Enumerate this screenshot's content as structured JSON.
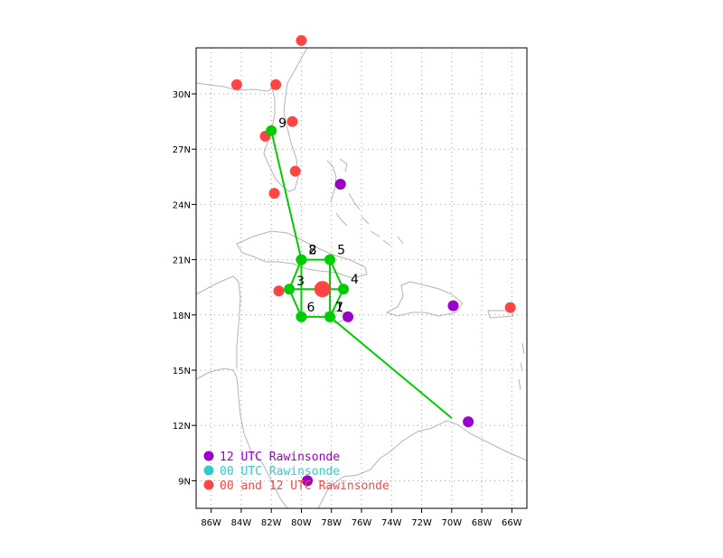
{
  "map": {
    "lon_range": [
      -87,
      -65
    ],
    "lat_range": [
      7.5,
      32.5
    ],
    "lon_ticks": [
      -86,
      -84,
      -82,
      -80,
      -78,
      -76,
      -74,
      -72,
      -70,
      -68,
      -66
    ],
    "lon_labels": [
      "86W",
      "84W",
      "82W",
      "80W",
      "78W",
      "76W",
      "74W",
      "72W",
      "70W",
      "68W",
      "66W"
    ],
    "lat_ticks": [
      9,
      12,
      15,
      18,
      21,
      24,
      27,
      30
    ],
    "lat_labels": [
      "9N",
      "12N",
      "15N",
      "18N",
      "21N",
      "24N",
      "27N",
      "30N"
    ],
    "grid": "dotted",
    "colors": {
      "coast": "#b4b4b4",
      "grid": "#a0a0a0",
      "track": "#00cc00",
      "purple": "#9900cc",
      "cyan": "#33cccc",
      "red": "#ff4444"
    }
  },
  "storm_center": {
    "lon": -78.6,
    "lat": 19.4
  },
  "drops": [
    {
      "label": "8",
      "lon": -80.0,
      "lat": 21.0
    },
    {
      "label": "2",
      "lon": -80.0,
      "lat": 21.0
    },
    {
      "label": "5",
      "lon": -78.1,
      "lat": 21.0
    },
    {
      "label": "4",
      "lon": -77.2,
      "lat": 19.4
    },
    {
      "label": "3",
      "lon": -80.8,
      "lat": 19.4
    },
    {
      "label": "6",
      "lon": -80.0,
      "lat": 17.9
    },
    {
      "label": "1",
      "lon": -78.1,
      "lat": 17.9
    },
    {
      "label": "7",
      "lon": -78.1,
      "lat": 17.9
    },
    {
      "label": "9",
      "lon": -82.0,
      "lat": 28.0
    }
  ],
  "tracks": [
    [
      [
        -82.0,
        28.0
      ],
      [
        -80.0,
        21.0
      ]
    ],
    [
      [
        -80.0,
        21.0
      ],
      [
        -80.8,
        19.4
      ],
      [
        -80.0,
        17.9
      ],
      [
        -78.1,
        17.9
      ],
      [
        -77.2,
        19.4
      ],
      [
        -78.1,
        21.0
      ],
      [
        -80.0,
        21.0
      ]
    ],
    [
      [
        -80.8,
        19.4
      ],
      [
        -77.2,
        19.4
      ]
    ],
    [
      [
        -80.0,
        21.0
      ],
      [
        -80.0,
        17.9
      ]
    ],
    [
      [
        -78.1,
        21.0
      ],
      [
        -78.1,
        17.9
      ]
    ],
    [
      [
        -78.1,
        17.9
      ],
      [
        -70.0,
        12.4
      ]
    ]
  ],
  "rawinsondes_12": [
    {
      "lon": -77.4,
      "lat": 25.1
    },
    {
      "lon": -76.9,
      "lat": 17.9
    },
    {
      "lon": -69.9,
      "lat": 18.5
    },
    {
      "lon": -68.9,
      "lat": 12.2
    },
    {
      "lon": -79.6,
      "lat": 9.0
    }
  ],
  "rawinsondes_both": [
    {
      "lon": -80.0,
      "lat": 32.9
    },
    {
      "lon": -84.3,
      "lat": 30.5
    },
    {
      "lon": -81.7,
      "lat": 30.5
    },
    {
      "lon": -80.6,
      "lat": 28.5
    },
    {
      "lon": -82.4,
      "lat": 27.7
    },
    {
      "lon": -80.4,
      "lat": 25.8
    },
    {
      "lon": -81.8,
      "lat": 24.6
    },
    {
      "lon": -81.5,
      "lat": 19.3
    },
    {
      "lon": -66.1,
      "lat": 18.4
    }
  ],
  "legend": [
    {
      "text": "12 UTC Rawinsonde",
      "color": "#9900cc"
    },
    {
      "text": "00 UTC Rawinsonde",
      "color": "#33cccc"
    },
    {
      "text": "00 and 12 UTC Rawinsonde",
      "color": "#ff4444"
    }
  ]
}
